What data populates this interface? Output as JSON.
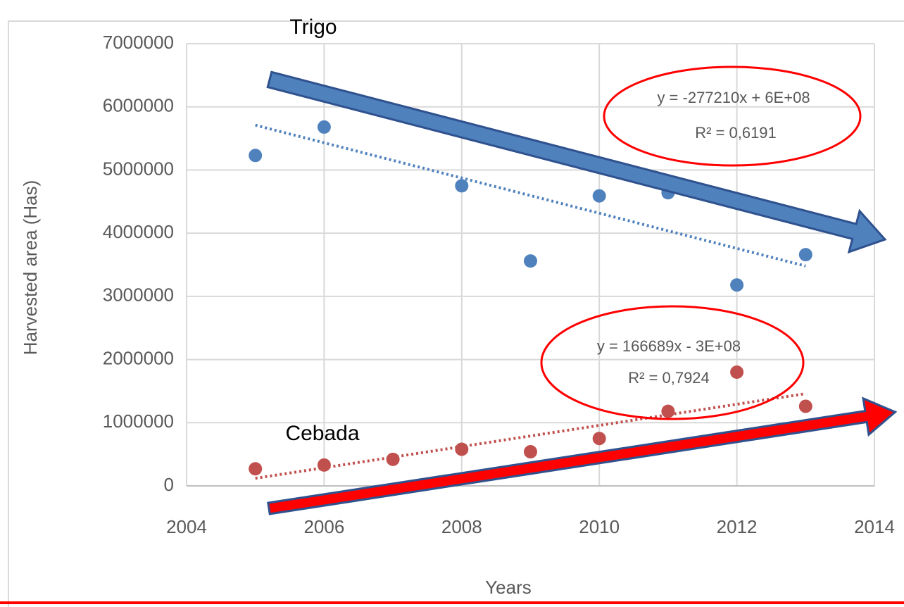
{
  "chart_data": {
    "type": "scatter",
    "y_label": "Harvested area (Has)",
    "x_label": "Years",
    "xlim": [
      2004,
      2014
    ],
    "xticks": [
      2004,
      2006,
      2008,
      2010,
      2012,
      2014
    ],
    "ylim": [
      0,
      7000000
    ],
    "yticks": [
      0,
      1000000,
      2000000,
      3000000,
      4000000,
      5000000,
      6000000,
      7000000
    ],
    "grid": true,
    "series": [
      {
        "name": "Trigo",
        "color": "#4f81bd",
        "x": [
          2005,
          2006,
          2008,
          2009,
          2010,
          2011,
          2012,
          2013
        ],
        "values": [
          5230000,
          5680000,
          4750000,
          3560000,
          4590000,
          4640000,
          3180000,
          3660000
        ],
        "trend": {
          "x": [
            2005,
            2013
          ],
          "values": [
            5710000,
            3480000
          ]
        },
        "equation": "y = -277210x + 6E+08",
        "r2": "R² = 0,6191"
      },
      {
        "name": "Cebada",
        "color": "#c0504d",
        "x": [
          2005,
          2006,
          2007,
          2008,
          2009,
          2010,
          2011,
          2012,
          2013
        ],
        "values": [
          270000,
          330000,
          420000,
          580000,
          540000,
          750000,
          1180000,
          1800000,
          1260000
        ],
        "trend": {
          "x": [
            2005,
            2013
          ],
          "values": [
            120000,
            1460000
          ]
        },
        "equation": "y = 166689x - 3E+08",
        "r2": "R² = 0,7924"
      }
    ]
  }
}
